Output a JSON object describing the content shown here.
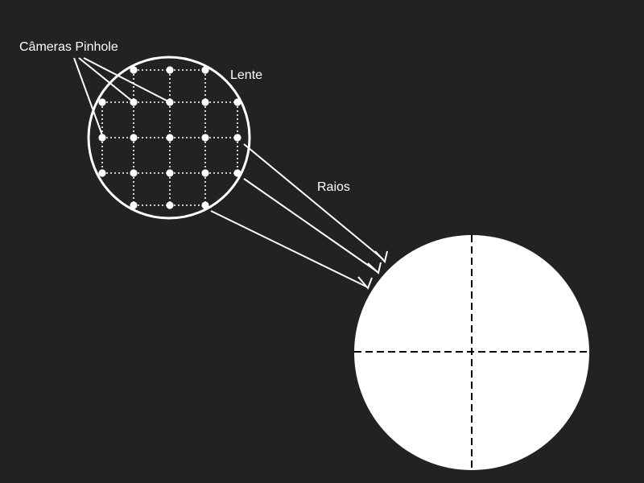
{
  "labels": {
    "pinhole_cameras": "Câmeras Pinhole",
    "lens": "Lente",
    "rays": "Raios"
  },
  "colors": {
    "background": "#222223",
    "foreground": "#ffffff",
    "sensor_fill": "#ffffff",
    "sensor_axes": "#000000"
  },
  "lens_grid": {
    "rows": [
      [
        0,
        1,
        1,
        1,
        0
      ],
      [
        1,
        1,
        1,
        1,
        1
      ],
      [
        1,
        1,
        1,
        1,
        1
      ],
      [
        1,
        1,
        1,
        1,
        1
      ],
      [
        0,
        1,
        1,
        1,
        0
      ]
    ]
  }
}
